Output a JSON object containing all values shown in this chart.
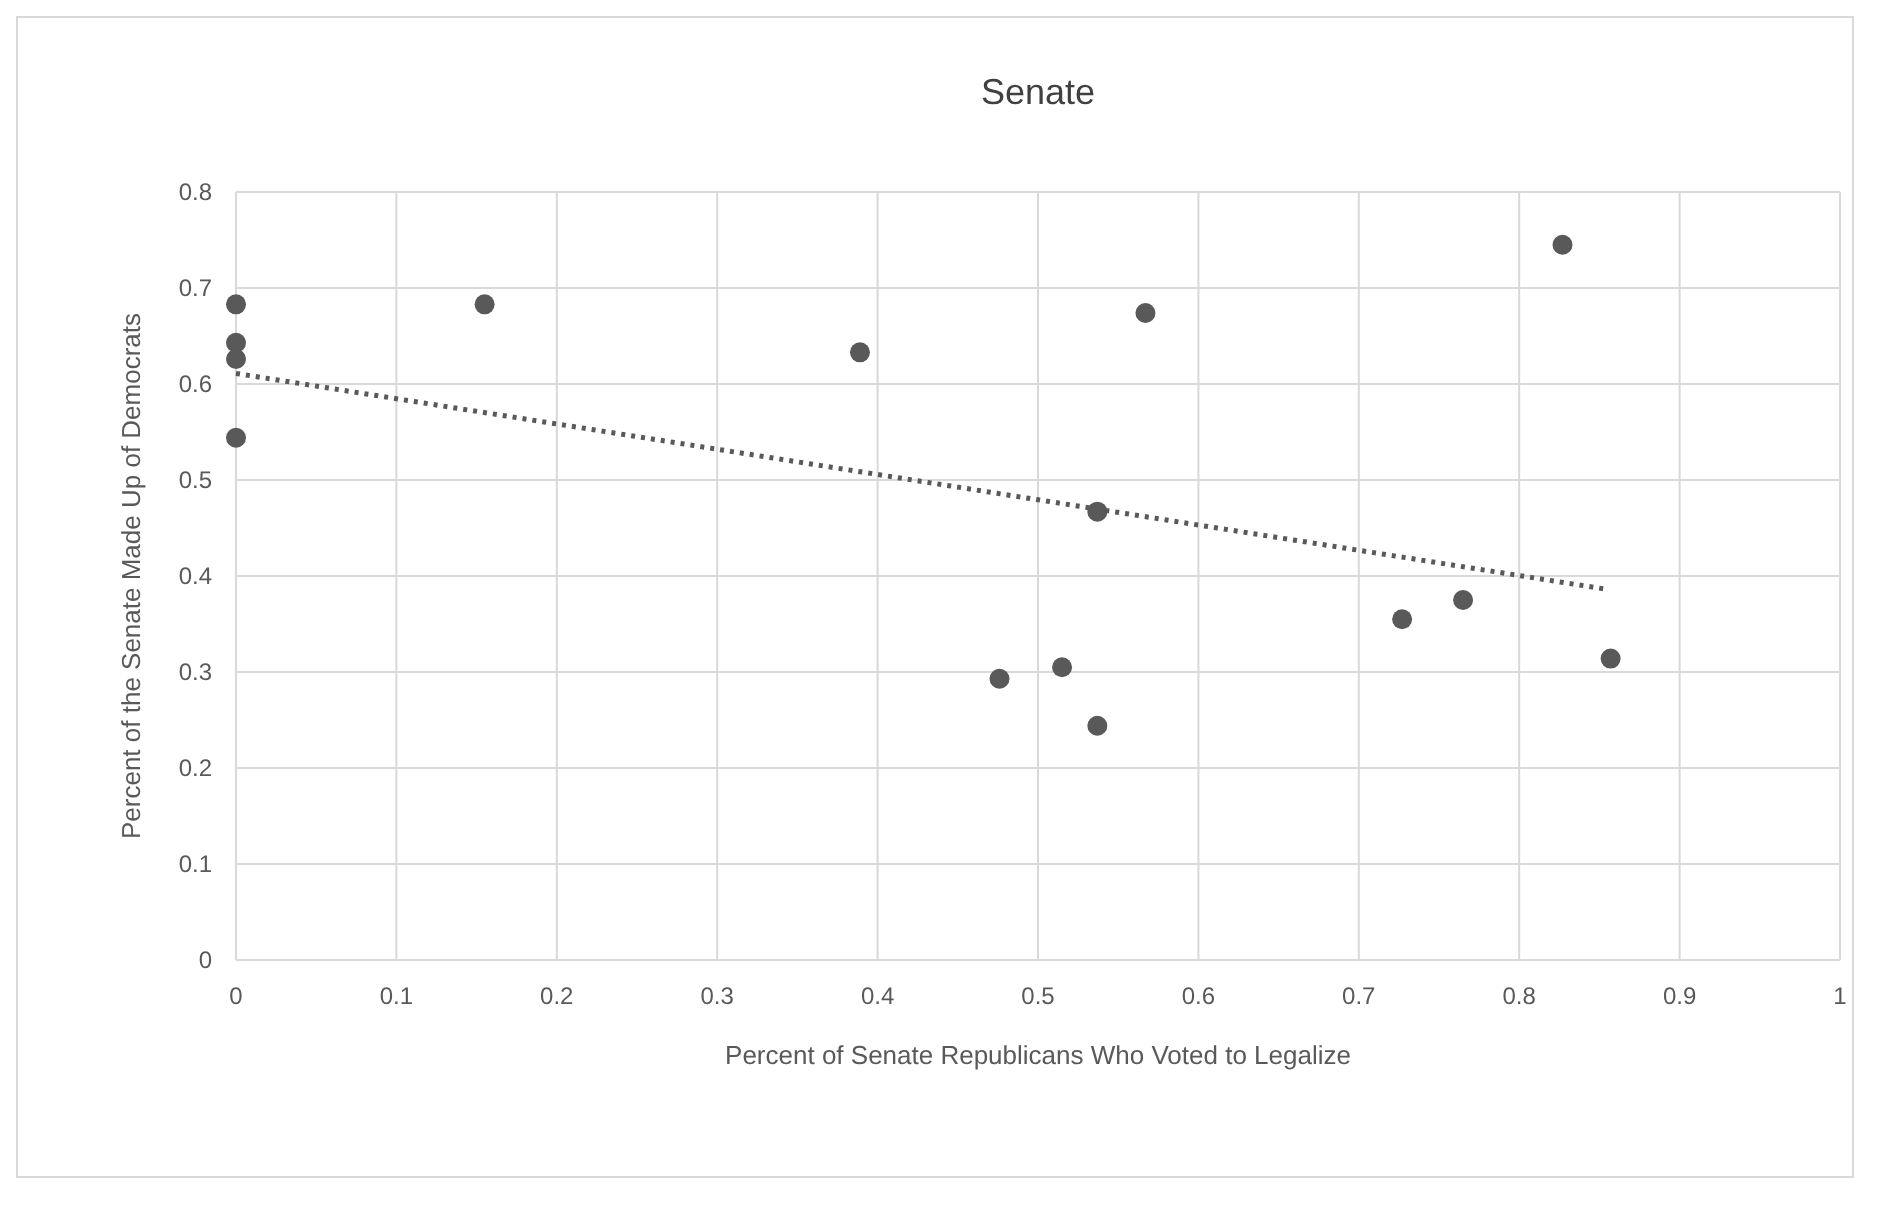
{
  "chart_data": {
    "type": "scatter",
    "title": "Senate",
    "xlabel": "Percent of Senate Republicans Who Voted to Legalize",
    "ylabel": "Percent of the Senate Made Up of Democrats",
    "xlim": [
      0,
      1
    ],
    "xticks": [
      0,
      0.1,
      0.2,
      0.3,
      0.4,
      0.5,
      0.6,
      0.7,
      0.8,
      0.9,
      1
    ],
    "ylim": [
      0,
      0.8
    ],
    "yticks": [
      0,
      0.1,
      0.2,
      0.3,
      0.4,
      0.5,
      0.6,
      0.7,
      0.8
    ],
    "grid": true,
    "series": [
      {
        "color": "#595959",
        "marker": "circle",
        "x": [
          0,
          0,
          0,
          0,
          0.155,
          0.389,
          0.567,
          0.537,
          0.827,
          0.727,
          0.765,
          0.857,
          0.476,
          0.515,
          0.537
        ],
        "values": [
          0.683,
          0.643,
          0.626,
          0.544,
          0.683,
          0.633,
          0.674,
          0.467,
          0.745,
          0.355,
          0.375,
          0.314,
          0.293,
          0.305,
          0.244
        ]
      },
      {
        "type": "line",
        "color": "#595959",
        "line_style": "dotted",
        "marker": "none",
        "x": [
          0,
          0.855
        ],
        "values": [
          0.611,
          0.386
        ]
      }
    ]
  }
}
